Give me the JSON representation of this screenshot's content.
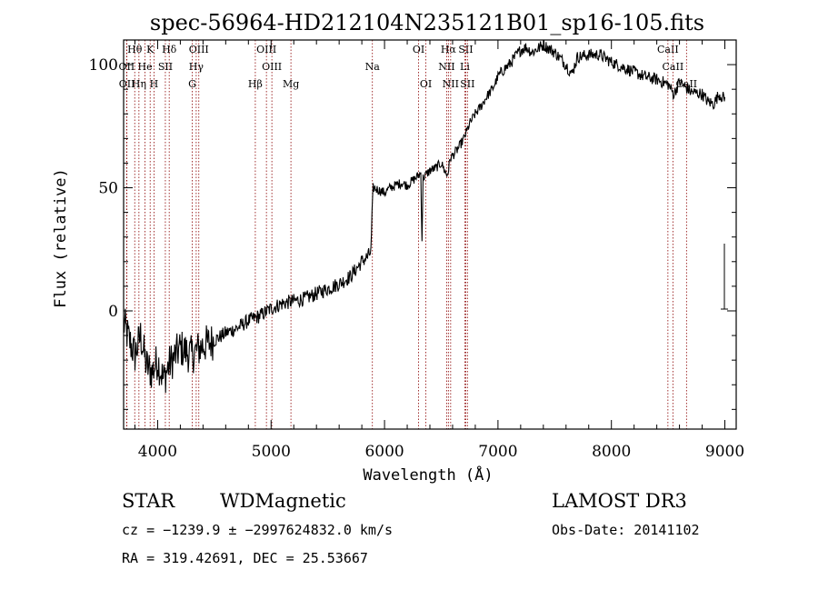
{
  "chart_data": {
    "type": "line",
    "title": "spec-56964-HD212104N235121B01_sp16-105.fits",
    "xlabel": "Wavelength (Å)",
    "ylabel": "Flux (relative)",
    "xlim": [
      3700,
      9100
    ],
    "ylim": [
      -48,
      110
    ],
    "xticks": [
      4000,
      5000,
      6000,
      7000,
      8000,
      9000
    ],
    "xtick_labels": [
      "4000",
      "5000",
      "6000",
      "7000",
      "8000",
      "9000"
    ],
    "yticks": [
      0,
      50,
      100
    ],
    "ytick_labels": [
      "0",
      "50",
      "100"
    ],
    "series": [
      {
        "name": "spectrum",
        "x": [
          3700,
          3750,
          3800,
          3850,
          3900,
          3950,
          4000,
          4050,
          4100,
          4200,
          4300,
          4400,
          4500,
          4600,
          4700,
          4800,
          4900,
          5000,
          5100,
          5200,
          5300,
          5400,
          5500,
          5600,
          5700,
          5800,
          5850,
          5880,
          5890,
          5900,
          5950,
          6000,
          6050,
          6100,
          6150,
          6200,
          6250,
          6300,
          6320,
          6330,
          6340,
          6400,
          6450,
          6500,
          6550,
          6563,
          6580,
          6600,
          6650,
          6700,
          6750,
          6800,
          6850,
          6900,
          6950,
          7000,
          7050,
          7100,
          7150,
          7200,
          7250,
          7300,
          7400,
          7500,
          7600,
          7650,
          7700,
          7800,
          7900,
          8000,
          8100,
          8200,
          8300,
          8400,
          8500,
          8550,
          8600,
          8700,
          8800,
          8850,
          8900,
          8950,
          9000
        ],
        "y": [
          -5,
          -12,
          -18,
          -10,
          -22,
          -25,
          -20,
          -28,
          -22,
          -15,
          -18,
          -14,
          -12,
          -9,
          -7,
          -4,
          -2,
          1,
          3,
          4,
          5,
          7,
          9,
          11,
          14,
          20,
          22,
          24,
          38,
          50,
          49,
          48,
          50,
          51,
          52,
          51,
          53,
          55,
          56,
          29,
          54,
          57,
          58,
          60,
          55,
          57,
          62,
          63,
          66,
          70,
          76,
          80,
          83,
          87,
          90,
          95,
          98,
          100,
          103,
          106,
          107,
          105,
          108,
          105,
          100,
          96,
          103,
          104,
          104,
          101,
          99,
          97,
          95,
          94,
          92,
          88,
          93,
          89,
          88,
          85,
          84,
          88,
          86
        ]
      }
    ],
    "spectral_lines": [
      {
        "name": "Hθ",
        "wavelength": 3798,
        "row": 0
      },
      {
        "name": "K",
        "wavelength": 3934,
        "row": 0
      },
      {
        "name": "Hδ",
        "wavelength": 4102,
        "row": 0
      },
      {
        "name": "OIII",
        "wavelength": 4363,
        "row": 0
      },
      {
        "name": "OIII",
        "wavelength": 4959,
        "row": 0
      },
      {
        "name": "OI",
        "wavelength": 6300,
        "row": 0
      },
      {
        "name": "Hα",
        "wavelength": 6563,
        "row": 0
      },
      {
        "name": "SII",
        "wavelength": 6716,
        "row": 0
      },
      {
        "name": "CaII",
        "wavelength": 8498,
        "row": 0
      },
      {
        "name": "OII",
        "wavelength": 3727,
        "row": 1
      },
      {
        "name": "He",
        "wavelength": 3889,
        "row": 1
      },
      {
        "name": "SII",
        "wavelength": 4068,
        "row": 1
      },
      {
        "name": "Hγ",
        "wavelength": 4340,
        "row": 1
      },
      {
        "name": "OIII",
        "wavelength": 5007,
        "row": 1
      },
      {
        "name": "Na",
        "wavelength": 5893,
        "row": 1
      },
      {
        "name": "NII",
        "wavelength": 6548,
        "row": 1
      },
      {
        "name": "Li",
        "wavelength": 6708,
        "row": 1
      },
      {
        "name": "CaII",
        "wavelength": 8542,
        "row": 1
      },
      {
        "name": "OII",
        "wavelength": 3729,
        "row": 2
      },
      {
        "name": "Hη",
        "wavelength": 3835,
        "row": 2
      },
      {
        "name": "H",
        "wavelength": 3968,
        "row": 2
      },
      {
        "name": "G",
        "wavelength": 4305,
        "row": 2
      },
      {
        "name": "Hβ",
        "wavelength": 4861,
        "row": 2
      },
      {
        "name": "Mg",
        "wavelength": 5175,
        "row": 2
      },
      {
        "name": "OI",
        "wavelength": 6364,
        "row": 2
      },
      {
        "name": "NII",
        "wavelength": 6583,
        "row": 2
      },
      {
        "name": "SII",
        "wavelength": 6731,
        "row": 2
      },
      {
        "name": "CaII",
        "wavelength": 8662,
        "row": 2
      }
    ],
    "line_color": "#8b0000",
    "spectrum_color": "#000000"
  },
  "info": {
    "class": "STAR",
    "subclass": "WDMagnetic",
    "survey": "LAMOST DR3",
    "redshift": "cz = −1239.9 ± −2997624832.0 km/s",
    "obs_date": "Obs-Date: 20141102",
    "coords": "RA = 319.42691, DEC =  25.53667"
  }
}
